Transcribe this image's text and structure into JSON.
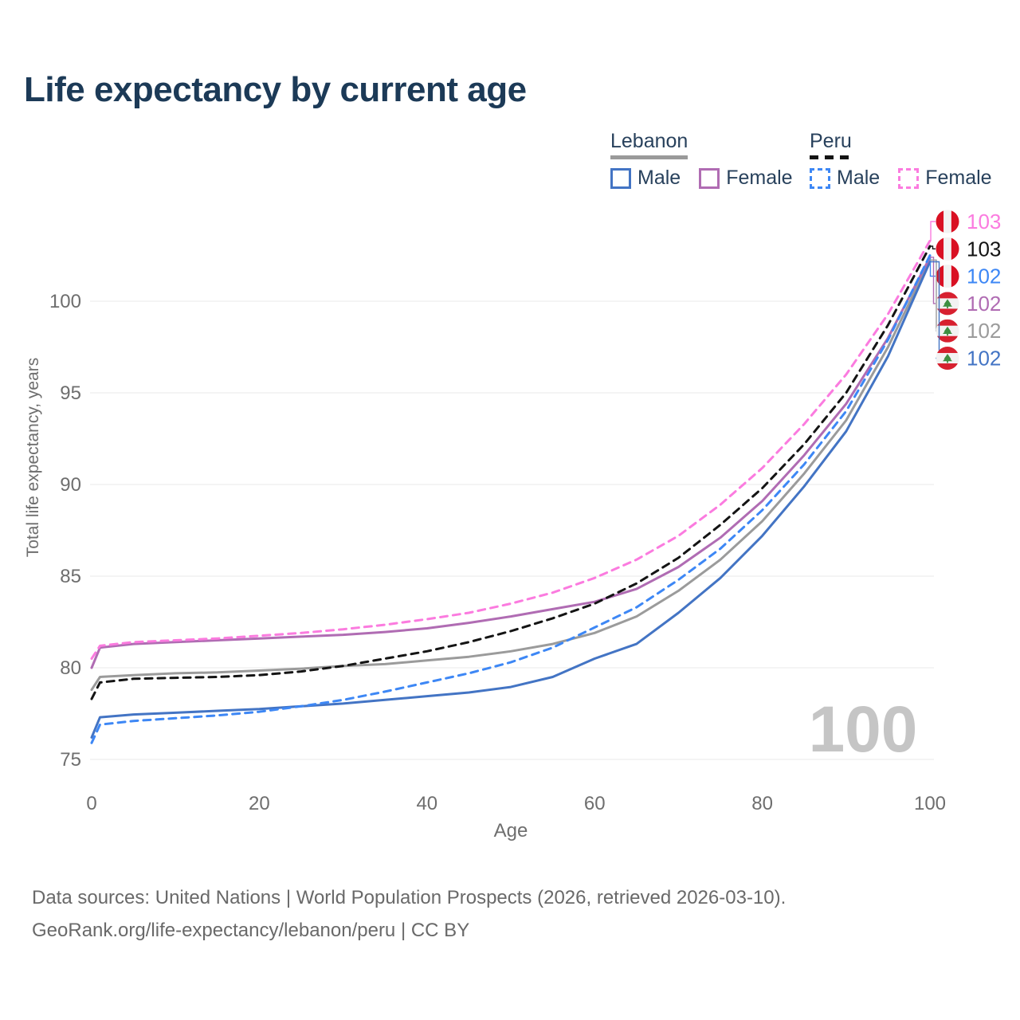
{
  "header": {
    "title": "Life expectancy by current age"
  },
  "legend": {
    "groups": [
      {
        "name": "Lebanon",
        "line_style": "solid",
        "line_color": "#9a9a9a",
        "items": [
          {
            "label": "Male",
            "color": "#4374c4",
            "dashed": false
          },
          {
            "label": "Female",
            "color": "#b06cb3",
            "dashed": false
          }
        ]
      },
      {
        "name": "Peru",
        "line_style": "dashed",
        "line_color": "#141414",
        "items": [
          {
            "label": "Male",
            "color": "#3d87f5",
            "dashed": true
          },
          {
            "label": "Female",
            "color": "#fb7bdf",
            "dashed": true
          }
        ]
      }
    ]
  },
  "chart_data": {
    "type": "line",
    "title": "Life expectancy by current age",
    "xlabel": "Age",
    "ylabel": "Total life expectancy, years",
    "xlim": [
      0,
      100
    ],
    "ylim": [
      75,
      103.5
    ],
    "x_ticks": [
      0,
      20,
      40,
      60,
      80,
      100
    ],
    "y_ticks": [
      75,
      80,
      85,
      90,
      95,
      100
    ],
    "grid": "horizontal-only",
    "gridline_color": "#e8e8e8",
    "axis_text_color": "#6e6e6e",
    "legend_position": "top-right",
    "watermark": "100",
    "watermark_color": "#c5c5c5",
    "x": [
      0,
      1,
      5,
      10,
      15,
      20,
      25,
      30,
      35,
      40,
      45,
      50,
      55,
      60,
      65,
      70,
      75,
      80,
      85,
      90,
      95,
      100
    ],
    "series": [
      {
        "id": "lebanon-total",
        "name": "Lebanon Total",
        "country": "Lebanon",
        "sex": "Total",
        "color": "#9b9b9b",
        "dashed": false,
        "end_label": "102",
        "values": [
          78.8,
          79.5,
          79.6,
          79.7,
          79.75,
          79.85,
          79.95,
          80.1,
          80.2,
          80.4,
          80.6,
          80.9,
          81.3,
          81.9,
          82.8,
          84.2,
          85.9,
          88.0,
          90.6,
          93.5,
          97.5,
          102.25
        ]
      },
      {
        "id": "lebanon-male",
        "name": "Lebanon Male",
        "country": "Lebanon",
        "sex": "Male",
        "color": "#4374c4",
        "dashed": false,
        "end_label": "102",
        "values": [
          76.2,
          77.3,
          77.45,
          77.55,
          77.65,
          77.75,
          77.9,
          78.05,
          78.25,
          78.45,
          78.65,
          78.95,
          79.5,
          80.5,
          81.3,
          83.0,
          84.9,
          87.2,
          89.9,
          92.9,
          97.0,
          102.15
        ]
      },
      {
        "id": "lebanon-female",
        "name": "Lebanon Female",
        "country": "Lebanon",
        "sex": "Female",
        "color": "#b06cb3",
        "dashed": false,
        "end_label": "102",
        "values": [
          80.0,
          81.1,
          81.3,
          81.4,
          81.5,
          81.6,
          81.7,
          81.8,
          81.95,
          82.15,
          82.45,
          82.8,
          83.2,
          83.6,
          84.3,
          85.5,
          87.1,
          89.1,
          91.6,
          94.4,
          98.0,
          102.4
        ]
      },
      {
        "id": "peru-total",
        "name": "Peru Total",
        "country": "Peru",
        "sex": "Total",
        "color": "#141414",
        "dashed": true,
        "end_label": "103",
        "values": [
          78.3,
          79.2,
          79.4,
          79.45,
          79.5,
          79.6,
          79.8,
          80.1,
          80.5,
          80.9,
          81.4,
          82.0,
          82.7,
          83.5,
          84.6,
          86.0,
          87.8,
          89.8,
          92.2,
          95.0,
          98.7,
          103.0
        ]
      },
      {
        "id": "peru-male",
        "name": "Peru Male",
        "country": "Peru",
        "sex": "Male",
        "color": "#3d87f5",
        "dashed": true,
        "end_label": "102",
        "values": [
          75.9,
          76.9,
          77.1,
          77.25,
          77.4,
          77.6,
          77.9,
          78.25,
          78.7,
          79.2,
          79.7,
          80.3,
          81.1,
          82.2,
          83.3,
          84.8,
          86.5,
          88.6,
          91.1,
          94.0,
          97.9,
          102.5
        ]
      },
      {
        "id": "peru-female",
        "name": "Peru Female",
        "country": "Peru",
        "sex": "Female",
        "color": "#fb7bdf",
        "dashed": true,
        "end_label": "103",
        "values": [
          80.5,
          81.2,
          81.4,
          81.5,
          81.6,
          81.75,
          81.9,
          82.1,
          82.35,
          82.65,
          83.0,
          83.5,
          84.1,
          84.9,
          85.9,
          87.2,
          88.9,
          90.9,
          93.3,
          96.0,
          99.3,
          103.3
        ]
      }
    ],
    "end_rows": [
      {
        "series": 5,
        "label": "103",
        "flag": "peru"
      },
      {
        "series": 3,
        "label": "103",
        "flag": "peru"
      },
      {
        "series": 4,
        "label": "102",
        "flag": "peru"
      },
      {
        "series": 2,
        "label": "102",
        "flag": "lebanon"
      },
      {
        "series": 0,
        "label": "102",
        "flag": "lebanon"
      },
      {
        "series": 1,
        "label": "102",
        "flag": "lebanon"
      }
    ],
    "flag_colors": {
      "red": "#d91023",
      "lebanon_red": "#d7202f",
      "white": "#f2f2f2",
      "cedar_green": "#3e8e41"
    }
  },
  "footer": {
    "line1": "Data sources: United Nations | World Population Prospects (2026, retrieved 2026-03-10).",
    "line2": "GeoRank.org/life-expectancy/lebanon/peru | CC BY"
  }
}
